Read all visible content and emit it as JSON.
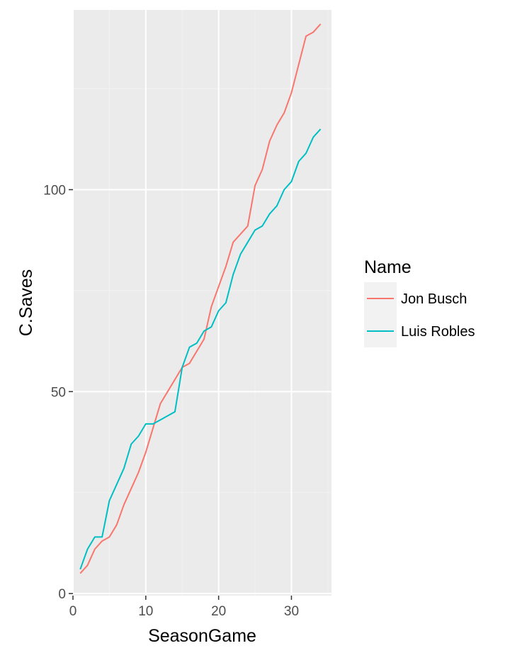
{
  "chart_data": {
    "type": "line",
    "title": "",
    "xlabel": "SeasonGame",
    "ylabel": "C.Saves",
    "xlim": [
      0,
      35.5
    ],
    "ylim": [
      -0.5,
      144.5
    ],
    "x_ticks": [
      0,
      10,
      20,
      30
    ],
    "y_ticks": [
      0,
      50,
      100
    ],
    "x_tick_labels": [
      "0",
      "10",
      "20",
      "30"
    ],
    "y_tick_labels": [
      "0",
      "50",
      "100"
    ],
    "grid": true,
    "legend": {
      "title": "Name",
      "placement": "right"
    },
    "x": [
      1,
      2,
      3,
      4,
      5,
      6,
      7,
      8,
      9,
      10,
      11,
      12,
      13,
      14,
      15,
      16,
      17,
      18,
      19,
      20,
      21,
      22,
      23,
      24,
      25,
      26,
      27,
      28,
      29,
      30,
      31,
      32,
      33,
      34
    ],
    "series": [
      {
        "name": "Jon Busch",
        "color": "#F8766D",
        "values": [
          5,
          7,
          11,
          13,
          14,
          17,
          22,
          26,
          30,
          35,
          41,
          47,
          50,
          53,
          56,
          57,
          60,
          63,
          71,
          76,
          81,
          87,
          89,
          91,
          101,
          105,
          112,
          116,
          119,
          124,
          131,
          138,
          139,
          141
        ]
      },
      {
        "name": "Luis Robles",
        "color": "#00BFC4",
        "values": [
          6,
          11,
          14,
          14,
          23,
          27,
          31,
          37,
          39,
          42,
          42,
          43,
          44,
          45,
          56,
          61,
          62,
          65,
          66,
          70,
          72,
          79,
          84,
          87,
          90,
          91,
          94,
          96,
          100,
          102,
          107,
          109,
          113,
          115
        ]
      }
    ]
  },
  "colors": {
    "panel_background": "#EBEBEB",
    "grid_major": "#FFFFFF",
    "grid_minor": "#F2F2F2",
    "tick_color": "#333333",
    "legend_key_background": "#F2F2F2"
  }
}
